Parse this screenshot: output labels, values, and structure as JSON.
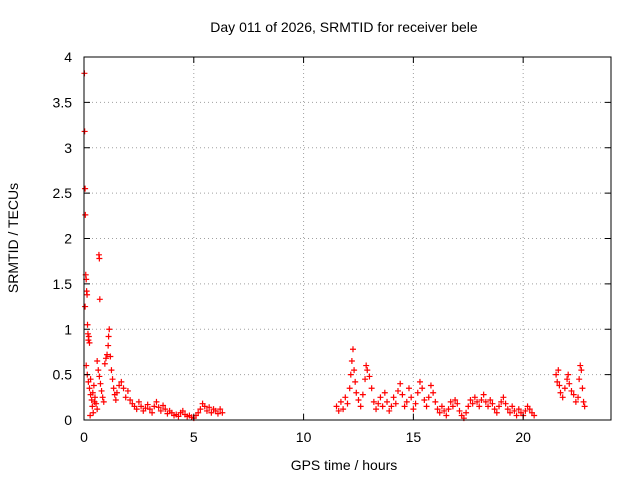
{
  "chart_data": {
    "type": "scatter",
    "title": "Day 011 of 2026, SRMTID for receiver bele",
    "xlabel": "GPS time / hours",
    "ylabel": "SRMTID / TECUs",
    "xlim": [
      0,
      24
    ],
    "ylim": [
      0,
      4
    ],
    "xticks": [
      0,
      5,
      10,
      15,
      20
    ],
    "yticks": [
      0,
      0.5,
      1,
      1.5,
      2,
      2.5,
      3,
      3.5,
      4
    ],
    "xtick_labels": [
      "0",
      "5",
      "10",
      "15",
      "20"
    ],
    "ytick_labels": [
      "0",
      "0.5",
      "1",
      "1.5",
      "2",
      "2.5",
      "3",
      "3.5",
      "4"
    ],
    "grid": true,
    "marker": "+",
    "series": [
      {
        "name": "SRMTID",
        "color": "#ff0000",
        "points": [
          [
            0.02,
            3.82
          ],
          [
            0.03,
            3.18
          ],
          [
            0.05,
            2.55
          ],
          [
            0.06,
            2.26
          ],
          [
            0.08,
            1.6
          ],
          [
            0.1,
            1.55
          ],
          [
            0.12,
            1.42
          ],
          [
            0.14,
            1.38
          ],
          [
            0.05,
            1.25
          ],
          [
            0.16,
            1.05
          ],
          [
            0.18,
            0.95
          ],
          [
            0.2,
            0.88
          ],
          [
            0.22,
            0.92
          ],
          [
            0.25,
            0.85
          ],
          [
            0.1,
            0.6
          ],
          [
            0.15,
            0.5
          ],
          [
            0.2,
            0.42
          ],
          [
            0.25,
            0.35
          ],
          [
            0.3,
            0.28
          ],
          [
            0.35,
            0.22
          ],
          [
            0.4,
            0.3
          ],
          [
            0.45,
            0.38
          ],
          [
            0.5,
            0.25
          ],
          [
            0.55,
            0.18
          ],
          [
            0.6,
            0.12
          ],
          [
            0.3,
            0.45
          ],
          [
            0.38,
            0.15
          ],
          [
            0.42,
            0.08
          ],
          [
            0.48,
            0.2
          ],
          [
            0.28,
            0.05
          ],
          [
            0.68,
            1.82
          ],
          [
            0.7,
            1.78
          ],
          [
            0.72,
            1.33
          ],
          [
            0.6,
            0.65
          ],
          [
            0.65,
            0.55
          ],
          [
            0.7,
            0.48
          ],
          [
            0.75,
            0.4
          ],
          [
            0.8,
            0.32
          ],
          [
            0.85,
            0.25
          ],
          [
            0.9,
            0.2
          ],
          [
            0.95,
            0.62
          ],
          [
            1.0,
            0.68
          ],
          [
            1.05,
            0.72
          ],
          [
            1.1,
            0.82
          ],
          [
            1.12,
            0.92
          ],
          [
            1.15,
            1.0
          ],
          [
            1.2,
            0.7
          ],
          [
            1.25,
            0.55
          ],
          [
            1.3,
            0.45
          ],
          [
            1.35,
            0.35
          ],
          [
            1.4,
            0.28
          ],
          [
            1.45,
            0.22
          ],
          [
            1.5,
            0.3
          ],
          [
            1.6,
            0.38
          ],
          [
            1.7,
            0.42
          ],
          [
            1.8,
            0.35
          ],
          [
            1.9,
            0.25
          ],
          [
            2.0,
            0.32
          ],
          [
            2.1,
            0.22
          ],
          [
            2.2,
            0.18
          ],
          [
            2.3,
            0.15
          ],
          [
            2.4,
            0.12
          ],
          [
            2.5,
            0.2
          ],
          [
            2.6,
            0.15
          ],
          [
            2.7,
            0.1
          ],
          [
            2.8,
            0.13
          ],
          [
            2.9,
            0.17
          ],
          [
            3.0,
            0.12
          ],
          [
            3.1,
            0.08
          ],
          [
            3.2,
            0.15
          ],
          [
            3.3,
            0.2
          ],
          [
            3.4,
            0.14
          ],
          [
            3.5,
            0.1
          ],
          [
            3.6,
            0.16
          ],
          [
            3.7,
            0.12
          ],
          [
            3.8,
            0.07
          ],
          [
            3.9,
            0.1
          ],
          [
            4.0,
            0.08
          ],
          [
            4.1,
            0.05
          ],
          [
            4.2,
            0.06
          ],
          [
            4.3,
            0.04
          ],
          [
            4.4,
            0.08
          ],
          [
            4.5,
            0.1
          ],
          [
            4.6,
            0.06
          ],
          [
            4.7,
            0.04
          ],
          [
            4.8,
            0.05
          ],
          [
            4.9,
            0.03
          ],
          [
            5.0,
            0.02
          ],
          [
            5.1,
            0.05
          ],
          [
            5.2,
            0.08
          ],
          [
            5.3,
            0.12
          ],
          [
            5.4,
            0.18
          ],
          [
            5.5,
            0.15
          ],
          [
            5.6,
            0.1
          ],
          [
            5.7,
            0.14
          ],
          [
            5.8,
            0.08
          ],
          [
            5.9,
            0.12
          ],
          [
            6.0,
            0.1
          ],
          [
            6.1,
            0.07
          ],
          [
            6.2,
            0.12
          ],
          [
            6.3,
            0.08
          ],
          [
            11.5,
            0.15
          ],
          [
            11.6,
            0.1
          ],
          [
            11.7,
            0.2
          ],
          [
            11.8,
            0.12
          ],
          [
            11.9,
            0.25
          ],
          [
            12.0,
            0.18
          ],
          [
            12.1,
            0.35
          ],
          [
            12.15,
            0.5
          ],
          [
            12.2,
            0.65
          ],
          [
            12.25,
            0.78
          ],
          [
            12.3,
            0.55
          ],
          [
            12.35,
            0.42
          ],
          [
            12.4,
            0.3
          ],
          [
            12.5,
            0.22
          ],
          [
            12.6,
            0.15
          ],
          [
            12.7,
            0.28
          ],
          [
            12.8,
            0.45
          ],
          [
            12.85,
            0.6
          ],
          [
            12.9,
            0.55
          ],
          [
            13.0,
            0.48
          ],
          [
            13.1,
            0.35
          ],
          [
            13.2,
            0.2
          ],
          [
            13.3,
            0.12
          ],
          [
            13.4,
            0.18
          ],
          [
            13.5,
            0.25
          ],
          [
            13.6,
            0.15
          ],
          [
            13.7,
            0.3
          ],
          [
            13.8,
            0.2
          ],
          [
            13.9,
            0.1
          ],
          [
            14.0,
            0.15
          ],
          [
            14.1,
            0.25
          ],
          [
            14.2,
            0.18
          ],
          [
            14.3,
            0.32
          ],
          [
            14.4,
            0.4
          ],
          [
            14.5,
            0.28
          ],
          [
            14.6,
            0.15
          ],
          [
            14.7,
            0.2
          ],
          [
            14.8,
            0.35
          ],
          [
            14.9,
            0.25
          ],
          [
            15.0,
            0.12
          ],
          [
            15.1,
            0.18
          ],
          [
            15.2,
            0.3
          ],
          [
            15.3,
            0.42
          ],
          [
            15.4,
            0.35
          ],
          [
            15.5,
            0.22
          ],
          [
            15.6,
            0.15
          ],
          [
            15.7,
            0.25
          ],
          [
            15.8,
            0.38
          ],
          [
            15.9,
            0.3
          ],
          [
            16.0,
            0.2
          ],
          [
            16.1,
            0.12
          ],
          [
            16.2,
            0.08
          ],
          [
            16.3,
            0.15
          ],
          [
            16.4,
            0.1
          ],
          [
            16.5,
            0.05
          ],
          [
            16.6,
            0.12
          ],
          [
            16.7,
            0.2
          ],
          [
            16.8,
            0.15
          ],
          [
            16.9,
            0.22
          ],
          [
            17.0,
            0.18
          ],
          [
            17.1,
            0.1
          ],
          [
            17.2,
            0.05
          ],
          [
            17.3,
            0.02
          ],
          [
            17.4,
            0.08
          ],
          [
            17.5,
            0.15
          ],
          [
            17.6,
            0.22
          ],
          [
            17.7,
            0.18
          ],
          [
            17.8,
            0.25
          ],
          [
            17.9,
            0.2
          ],
          [
            18.0,
            0.15
          ],
          [
            18.1,
            0.22
          ],
          [
            18.2,
            0.28
          ],
          [
            18.3,
            0.2
          ],
          [
            18.4,
            0.15
          ],
          [
            18.5,
            0.22
          ],
          [
            18.6,
            0.18
          ],
          [
            18.7,
            0.12
          ],
          [
            18.8,
            0.08
          ],
          [
            18.9,
            0.15
          ],
          [
            19.0,
            0.2
          ],
          [
            19.1,
            0.25
          ],
          [
            19.2,
            0.18
          ],
          [
            19.3,
            0.12
          ],
          [
            19.4,
            0.08
          ],
          [
            19.5,
            0.15
          ],
          [
            19.6,
            0.1
          ],
          [
            19.7,
            0.05
          ],
          [
            19.8,
            0.12
          ],
          [
            19.9,
            0.08
          ],
          [
            20.0,
            0.05
          ],
          [
            20.1,
            0.1
          ],
          [
            20.2,
            0.15
          ],
          [
            20.3,
            0.12
          ],
          [
            20.4,
            0.08
          ],
          [
            20.5,
            0.05
          ],
          [
            21.5,
            0.5
          ],
          [
            21.55,
            0.42
          ],
          [
            21.6,
            0.55
          ],
          [
            21.65,
            0.38
          ],
          [
            21.7,
            0.3
          ],
          [
            21.8,
            0.25
          ],
          [
            21.9,
            0.35
          ],
          [
            22.0,
            0.45
          ],
          [
            22.05,
            0.5
          ],
          [
            22.1,
            0.4
          ],
          [
            22.2,
            0.32
          ],
          [
            22.3,
            0.28
          ],
          [
            22.4,
            0.2
          ],
          [
            22.5,
            0.25
          ],
          [
            22.55,
            0.45
          ],
          [
            22.6,
            0.6
          ],
          [
            22.65,
            0.55
          ],
          [
            22.7,
            0.35
          ],
          [
            22.75,
            0.2
          ],
          [
            22.8,
            0.15
          ]
        ]
      }
    ]
  }
}
